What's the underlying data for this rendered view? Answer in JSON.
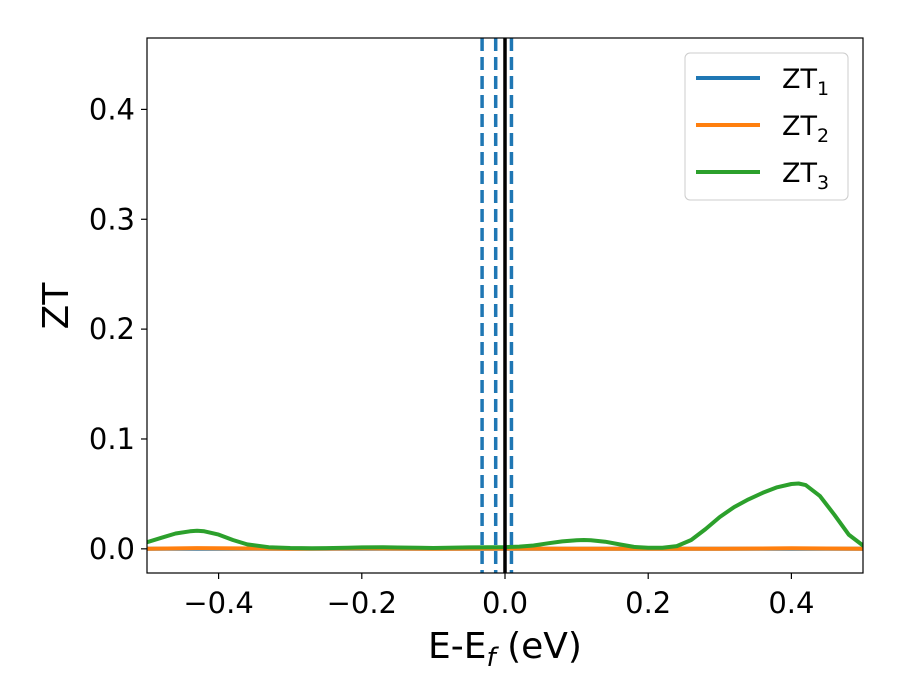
{
  "chart_data": {
    "type": "line",
    "title": "",
    "xlabel": {
      "main": "E-E",
      "sub": "f",
      "unit": " (eV)"
    },
    "ylabel": "ZT",
    "xlim": [
      -0.5,
      0.5
    ],
    "ylim": [
      -0.022,
      0.465
    ],
    "xticks": [
      -0.4,
      -0.2,
      0.0,
      0.2,
      0.4
    ],
    "xtick_labels": [
      "−0.4",
      "−0.2",
      "0.0",
      "0.2",
      "0.4"
    ],
    "yticks": [
      0.0,
      0.1,
      0.2,
      0.3,
      0.4
    ],
    "ytick_labels": [
      "0.0",
      "0.1",
      "0.2",
      "0.3",
      "0.4"
    ],
    "grid": false,
    "legend_position": "top-right",
    "series": [
      {
        "name": "ZT",
        "name_sub": "1",
        "color": "#1f77b4",
        "x": [
          -0.5,
          0.5
        ],
        "y": [
          0.0,
          0.0
        ]
      },
      {
        "name": "ZT",
        "name_sub": "2",
        "color": "#ff7f0e",
        "x": [
          -0.5,
          -0.43,
          -0.3,
          -0.2,
          -0.1,
          0.0,
          0.1,
          0.2,
          0.3,
          0.4,
          0.5
        ],
        "y": [
          0.0,
          0.0007,
          0.0,
          0.0004,
          0.0,
          0.0002,
          0.0,
          0.0,
          0.0,
          0.0005,
          0.0
        ]
      },
      {
        "name": "ZT",
        "name_sub": "3",
        "color": "#2ca02c",
        "x": [
          -0.5,
          -0.48,
          -0.46,
          -0.44,
          -0.43,
          -0.42,
          -0.4,
          -0.38,
          -0.36,
          -0.33,
          -0.3,
          -0.27,
          -0.25,
          -0.22,
          -0.2,
          -0.17,
          -0.15,
          -0.12,
          -0.1,
          -0.08,
          -0.05,
          -0.02,
          0.0,
          0.02,
          0.04,
          0.06,
          0.08,
          0.1,
          0.11,
          0.12,
          0.14,
          0.16,
          0.18,
          0.2,
          0.22,
          0.24,
          0.26,
          0.28,
          0.3,
          0.32,
          0.34,
          0.36,
          0.38,
          0.4,
          0.41,
          0.42,
          0.44,
          0.46,
          0.48,
          0.5
        ],
        "y": [
          0.006,
          0.01,
          0.014,
          0.016,
          0.0165,
          0.016,
          0.013,
          0.008,
          0.004,
          0.0015,
          0.0008,
          0.0006,
          0.0007,
          0.001,
          0.0013,
          0.0014,
          0.0012,
          0.001,
          0.0008,
          0.001,
          0.0013,
          0.0015,
          0.0016,
          0.002,
          0.003,
          0.005,
          0.0068,
          0.0078,
          0.008,
          0.0078,
          0.0065,
          0.004,
          0.0018,
          0.001,
          0.001,
          0.0025,
          0.008,
          0.018,
          0.029,
          0.038,
          0.045,
          0.051,
          0.056,
          0.059,
          0.0595,
          0.058,
          0.048,
          0.031,
          0.013,
          0.003
        ]
      }
    ],
    "vlines": [
      {
        "x": -0.032,
        "style": "dashed",
        "color": "#1f77b4"
      },
      {
        "x": -0.013,
        "style": "dashed",
        "color": "#1f77b4"
      },
      {
        "x": 0.009,
        "style": "dashed",
        "color": "#1f77b4"
      },
      {
        "x": 0.0,
        "style": "solid",
        "color": "#000000"
      }
    ]
  }
}
